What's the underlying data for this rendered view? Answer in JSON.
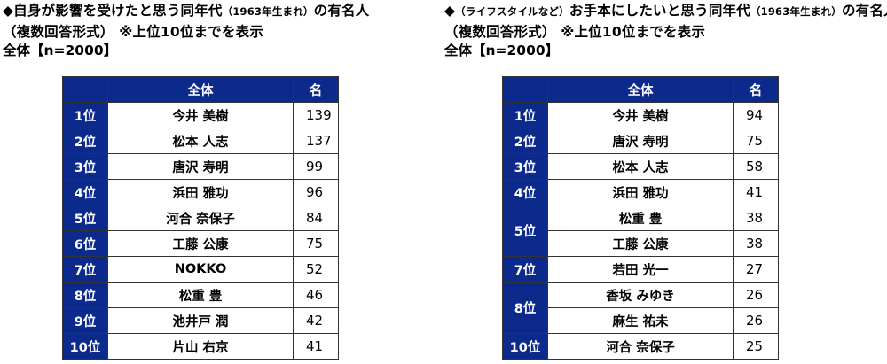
{
  "left": {
    "title_line1_main": "◆自身が影響を受けたと思う同年代",
    "title_line1_small": "（1963年生まれ）",
    "title_line1_tail": "の有名人",
    "title_line2": "（複数回答形式） ※上位10位までを表示",
    "total_label": "全体【n=2000】",
    "header": {
      "rank": "",
      "name": "全体",
      "value": "名"
    },
    "rows": [
      {
        "rank": "1位",
        "name": "今井 美樹",
        "value": "139"
      },
      {
        "rank": "2位",
        "name": "松本 人志",
        "value": "137"
      },
      {
        "rank": "3位",
        "name": "唐沢 寿明",
        "value": "99"
      },
      {
        "rank": "4位",
        "name": "浜田 雅功",
        "value": "96"
      },
      {
        "rank": "5位",
        "name": "河合 奈保子",
        "value": "84"
      },
      {
        "rank": "6位",
        "name": "工藤 公康",
        "value": "75"
      },
      {
        "rank": "7位",
        "name": "NOKKO",
        "value": "52"
      },
      {
        "rank": "8位",
        "name": "松重 豊",
        "value": "46"
      },
      {
        "rank": "9位",
        "name": "池井戸 潤",
        "value": "42"
      },
      {
        "rank": "10位",
        "name": "片山 右京",
        "value": "41"
      }
    ]
  },
  "right": {
    "title_line1_small_lead": "（ライフスタイルなど）",
    "title_line1_main": "お手本にしたいと思う同年代",
    "title_line1_small": "（1963年生まれ）",
    "title_line1_tail": "の有名人",
    "title_line2": "（複数回答形式） ※上位10位までを表示",
    "total_label": "全体【n=2000】",
    "header": {
      "rank": "",
      "name": "全体",
      "value": "名"
    },
    "rows": [
      {
        "rank": "1位",
        "name": "今井 美樹",
        "value": "94"
      },
      {
        "rank": "2位",
        "name": "唐沢 寿明",
        "value": "75"
      },
      {
        "rank": "3位",
        "name": "松本 人志",
        "value": "58"
      },
      {
        "rank": "4位",
        "name": "浜田 雅功",
        "value": "41"
      },
      {
        "rank": "5位",
        "name": "松重 豊",
        "value": "38"
      },
      {
        "rank": "",
        "name": "工藤 公康",
        "value": "38"
      },
      {
        "rank": "7位",
        "name": "若田 光一",
        "value": "27"
      },
      {
        "rank": "8位",
        "name": "香坂 みゆき",
        "value": "26"
      },
      {
        "rank": "",
        "name": "麻生 祐未",
        "value": "26"
      },
      {
        "rank": "10位",
        "name": "河合 奈保子",
        "value": "25"
      }
    ]
  },
  "colors": {
    "header_bg": "#0b2a8c",
    "header_text": "#ffffff",
    "border": "#333333"
  }
}
